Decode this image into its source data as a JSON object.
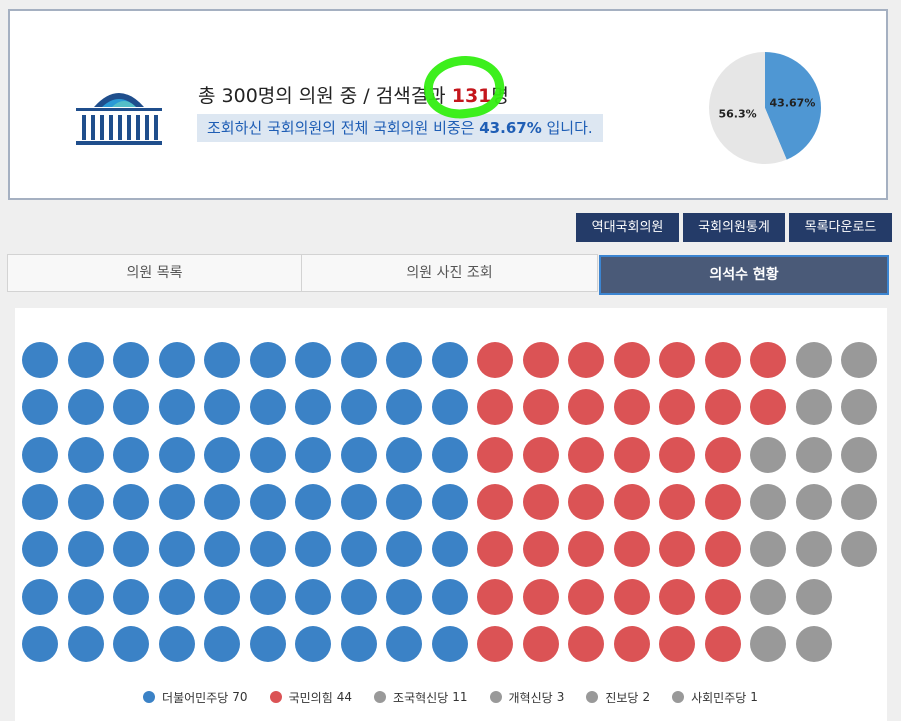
{
  "summary": {
    "line_prefix": "총 300명의 의원 중 / 검색결과 ",
    "result_count": "131",
    "line_suffix": "명",
    "highlight_prefix": "조회하신 국회의원의 전체 국회의원 비중은 ",
    "highlight_pct": "43.67%",
    "highlight_suffix": " 입니다."
  },
  "pie": {
    "slices": [
      {
        "label": "43.67%",
        "value": 43.67,
        "color": "#4f97d3"
      },
      {
        "label": "56.3%",
        "value": 56.33,
        "color": "#e6e6e6"
      }
    ]
  },
  "actions": [
    "역대국회의원",
    "국회의원통계",
    "목록다운로드"
  ],
  "tabs": [
    {
      "label": "의원 목록",
      "active": false
    },
    {
      "label": "의원 사진 조회",
      "active": false
    },
    {
      "label": "의석수 현황",
      "active": true
    }
  ],
  "seat_chart": {
    "parties": [
      {
        "name": "더불어민주당",
        "seats": 70,
        "color": "#3b82c6"
      },
      {
        "name": "국민의힘",
        "seats": 44,
        "color": "#db5355"
      },
      {
        "name": "조국혁신당",
        "seats": 11,
        "color": "#999999"
      },
      {
        "name": "개혁신당",
        "seats": 3,
        "color": "#999999"
      },
      {
        "name": "진보당",
        "seats": 2,
        "color": "#999999"
      },
      {
        "name": "사회민주당",
        "seats": 1,
        "color": "#999999"
      }
    ]
  }
}
